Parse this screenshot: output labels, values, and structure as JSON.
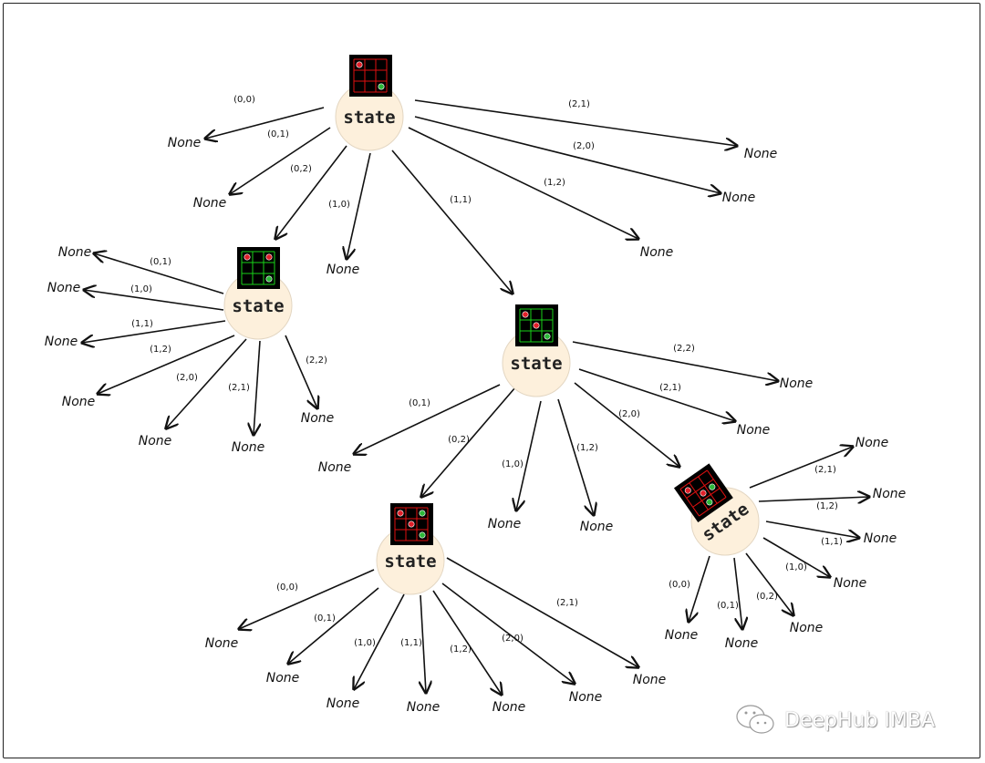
{
  "node_label": "State",
  "none_label": "None",
  "colors": {
    "node_fill": "#fdf0dc",
    "grid_bg": "#000000",
    "red": "#e0202a",
    "green": "#2db83a",
    "grid_red": "#e01010",
    "grid_green": "#19d219"
  },
  "nodes": [
    {
      "grid_line_color": "red",
      "red_cells": [
        [
          0,
          0
        ]
      ],
      "green_cells": [
        [
          2,
          2
        ]
      ],
      "edges": [
        {
          "label": "(0,0)",
          "target": "None"
        },
        {
          "label": "(0,1)",
          "target": "None"
        },
        {
          "label": "(0,2)",
          "target": 1
        },
        {
          "label": "(1,0)",
          "target": "None"
        },
        {
          "label": "(1,1)",
          "target": 2
        },
        {
          "label": "(1,2)",
          "target": "None"
        },
        {
          "label": "(2,0)",
          "target": "None"
        },
        {
          "label": "(2,1)",
          "target": "None"
        }
      ]
    },
    {
      "grid_line_color": "green",
      "red_cells": [
        [
          0,
          0
        ],
        [
          0,
          2
        ]
      ],
      "green_cells": [
        [
          2,
          2
        ]
      ],
      "edges": [
        {
          "label": "(0,1)",
          "target": "None"
        },
        {
          "label": "(1,0)",
          "target": "None"
        },
        {
          "label": "(1,1)",
          "target": "None"
        },
        {
          "label": "(1,2)",
          "target": "None"
        },
        {
          "label": "(2,0)",
          "target": "None"
        },
        {
          "label": "(2,1)",
          "target": "None"
        },
        {
          "label": "(2,2)",
          "target": "None"
        }
      ]
    },
    {
      "grid_line_color": "green",
      "red_cells": [
        [
          0,
          0
        ],
        [
          1,
          1
        ]
      ],
      "green_cells": [
        [
          2,
          2
        ]
      ],
      "edges": [
        {
          "label": "(2,2)",
          "target": "None"
        },
        {
          "label": "(2,1)",
          "target": "None"
        },
        {
          "label": "(2,0)",
          "target": 4
        },
        {
          "label": "(0,1)",
          "target": "None"
        },
        {
          "label": "(0,2)",
          "target": 3
        },
        {
          "label": "(1,0)",
          "target": "None"
        },
        {
          "label": "(1,2)",
          "target": "None"
        }
      ]
    },
    {
      "grid_line_color": "red",
      "red_cells": [
        [
          0,
          0
        ],
        [
          1,
          1
        ]
      ],
      "green_cells": [
        [
          0,
          2
        ],
        [
          2,
          2
        ]
      ],
      "edges": [
        {
          "label": "(0,0)",
          "target": "None"
        },
        {
          "label": "(0,1)",
          "target": "None"
        },
        {
          "label": "(1,0)",
          "target": "None"
        },
        {
          "label": "(1,1)",
          "target": "None"
        },
        {
          "label": "(1,2)",
          "target": "None"
        },
        {
          "label": "(2,0)",
          "target": "None"
        },
        {
          "label": "(2,1)",
          "target": "None"
        }
      ]
    },
    {
      "grid_line_color": "red",
      "red_cells": [
        [
          0,
          0
        ],
        [
          1,
          1
        ]
      ],
      "green_cells": [
        [
          1,
          2
        ],
        [
          2,
          1
        ]
      ],
      "edges": [
        {
          "label": "(2,1)",
          "target": "None"
        },
        {
          "label": "(1,2)",
          "target": "None"
        },
        {
          "label": "(1,1)",
          "target": "None"
        },
        {
          "label": "(1,0)",
          "target": "None"
        },
        {
          "label": "(0,2)",
          "target": "None"
        },
        {
          "label": "(0,1)",
          "target": "None"
        },
        {
          "label": "(0,0)",
          "target": "None"
        }
      ]
    }
  ],
  "watermark": {
    "text": "DeepHub IMBA",
    "icon": "wechat-icon"
  }
}
